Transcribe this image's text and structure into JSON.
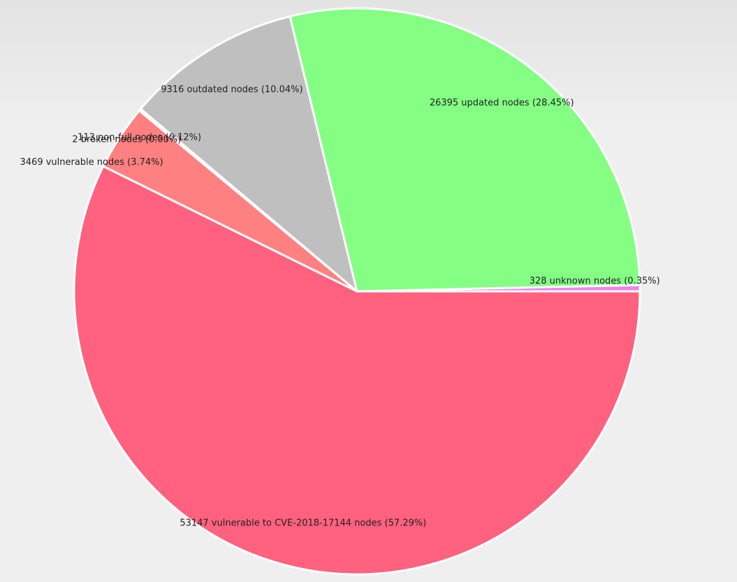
{
  "chart_data": {
    "type": "pie",
    "title": "",
    "slices": [
      {
        "label": "53147 vulnerable to CVE-2018-17144 nodes (57.29%)",
        "value": 53147,
        "percent": 57.29,
        "color": "#ff617f"
      },
      {
        "label": "3469 vulnerable nodes (3.74%)",
        "value": 3469,
        "percent": 3.74,
        "color": "#ff8080"
      },
      {
        "label": "2 broken nodes (0.00%)",
        "value": 2,
        "percent": 0.0,
        "color": "#ff4040"
      },
      {
        "label": "113 non-full nodes (0.12%)",
        "value": 113,
        "percent": 0.12,
        "color": "#9a9a9a"
      },
      {
        "label": "9316 outdated nodes (10.04%)",
        "value": 9316,
        "percent": 10.04,
        "color": "#bfbfbf"
      },
      {
        "label": "26395 updated nodes (28.45%)",
        "value": 26395,
        "percent": 28.45,
        "color": "#84ff84"
      },
      {
        "label": "328 unknown nodes (0.35%)",
        "value": 328,
        "percent": 0.35,
        "color": "#ee82ee"
      }
    ],
    "start_angle_deg": 0,
    "direction": "clockwise",
    "legend": "none"
  }
}
